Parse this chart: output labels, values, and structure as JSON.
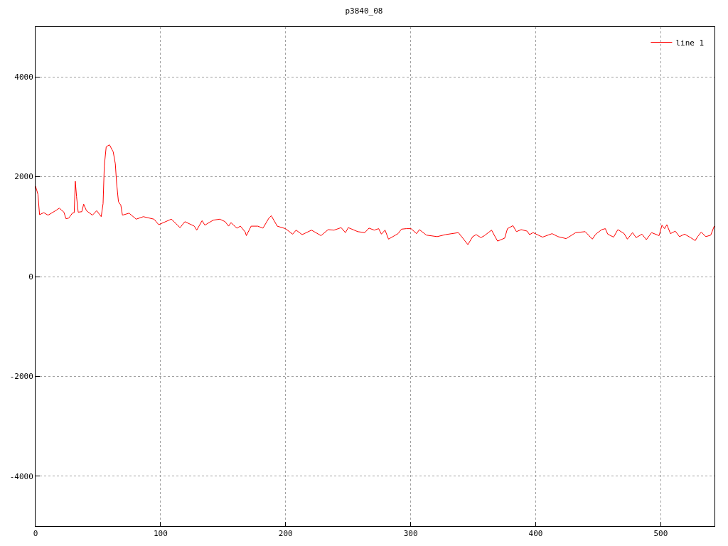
{
  "chart_data": {
    "type": "line",
    "title": "p3840_08",
    "series": [
      {
        "name": "line 1",
        "color": "#ff0000",
        "x": [
          0,
          1.9,
          3.2,
          6.6,
          10,
          16,
          19,
          22.7,
          24.3,
          26.5,
          29.4,
          30.9,
          31.8,
          32.8,
          34.1,
          37,
          38.5,
          40.7,
          45.5,
          48.9,
          52.5,
          54,
          55,
          56.5,
          59.1,
          62.1,
          63.8,
          64.8,
          66.3,
          68.2,
          69.5,
          74.8,
          80.5,
          86.2,
          94.7,
          98.5,
          108.6,
          115.6,
          119.4,
          127,
          128.9,
          133.2,
          135.4,
          142.1,
          147.4,
          151.6,
          154.4,
          156.3,
          161,
          163.9,
          167.7,
          168.6,
          172.4,
          177.7,
          181.9,
          186.6,
          188.5,
          193.3,
          199.9,
          205.6,
          208.4,
          213.2,
          220.7,
          228.3,
          234,
          238.7,
          244.4,
          247.8,
          250.1,
          257.7,
          263.3,
          266.7,
          270.9,
          274.4,
          276.6,
          279.5,
          282.3,
          289.9,
          292.7,
          296.5,
          300.3,
          304.7,
          307,
          312.6,
          321.2,
          327.8,
          338.2,
          345.8,
          349.6,
          352.4,
          356.2,
          359,
          364.7,
          369.5,
          375.2,
          377.4,
          381.8,
          384.6,
          388.4,
          393.2,
          395.1,
          397.9,
          405.5,
          413.1,
          417.8,
          424.4,
          432,
          439.6,
          445.3,
          448.1,
          452.8,
          455.7,
          457.6,
          462.3,
          465.7,
          470.8,
          473.3,
          477.5,
          480.3,
          485,
          488.5,
          492.7,
          498.7,
          501,
          503.1,
          504.9,
          507.8,
          511.6,
          515,
          519.1,
          523.9,
          527.6,
          529.5,
          532.4,
          536.1,
          540,
          542.8
        ],
        "values": [
          1810,
          1650,
          1240,
          1280,
          1230,
          1320,
          1370,
          1290,
          1160,
          1170,
          1270,
          1280,
          1910,
          1600,
          1290,
          1300,
          1450,
          1320,
          1230,
          1320,
          1200,
          1460,
          2220,
          2600,
          2640,
          2500,
          2260,
          1880,
          1500,
          1430,
          1230,
          1270,
          1150,
          1200,
          1150,
          1040,
          1150,
          980,
          1100,
          1010,
          930,
          1120,
          1030,
          1130,
          1150,
          1100,
          1010,
          1080,
          970,
          1010,
          890,
          820,
          1010,
          1010,
          970,
          1170,
          1220,
          1010,
          960,
          850,
          930,
          840,
          930,
          820,
          940,
          930,
          980,
          880,
          980,
          900,
          880,
          970,
          930,
          960,
          850,
          930,
          750,
          860,
          950,
          960,
          960,
          860,
          940,
          830,
          800,
          840,
          880,
          640,
          800,
          840,
          780,
          820,
          930,
          710,
          770,
          960,
          1020,
          900,
          940,
          910,
          840,
          880,
          790,
          860,
          800,
          760,
          880,
          900,
          750,
          850,
          940,
          960,
          850,
          790,
          940,
          860,
          750,
          880,
          780,
          850,
          740,
          880,
          820,
          1030,
          960,
          1040,
          860,
          910,
          800,
          850,
          780,
          720,
          800,
          890,
          800,
          830,
          1010
        ]
      }
    ],
    "xlim": [
      0,
      543
    ],
    "xticks": [
      0,
      100,
      200,
      300,
      400,
      500
    ],
    "ylim": [
      -5000,
      5000
    ],
    "yticks": [
      -4000,
      -2000,
      0,
      2000,
      4000
    ],
    "grid": true,
    "legend": "top right",
    "line_style": "solid",
    "marker": "none"
  }
}
